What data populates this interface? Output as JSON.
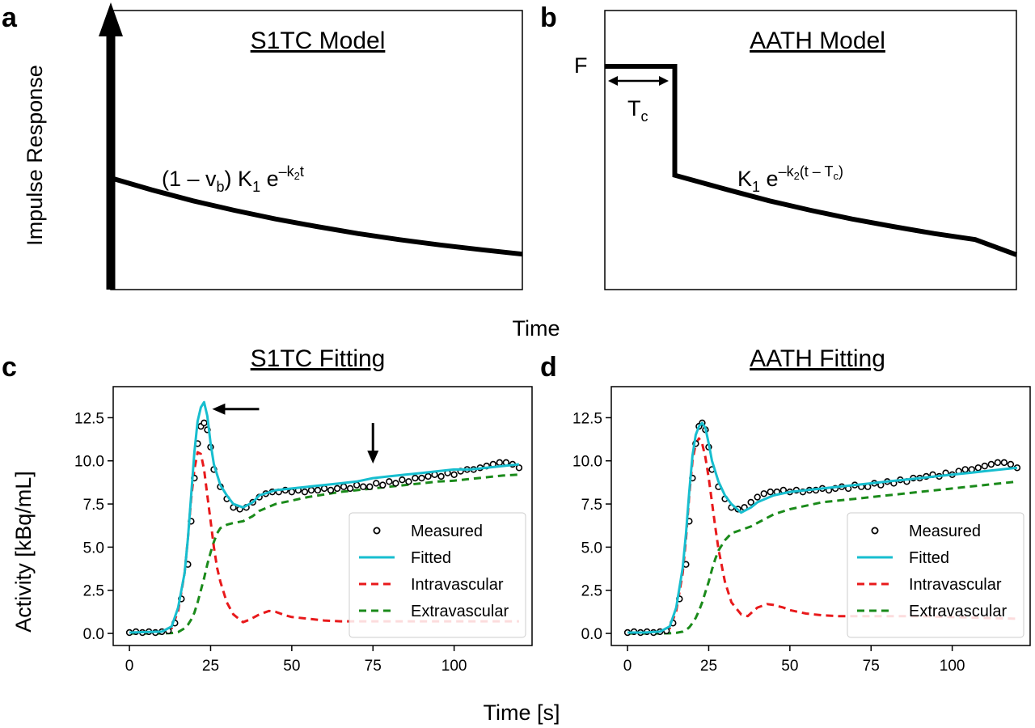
{
  "panels": {
    "a": {
      "letter": "a",
      "title": "S1TC Model",
      "equation": {
        "p1": "(1 – v",
        "p1_sub": "b",
        "p2": ") K",
        "p2_sub": "1",
        "p3": " e",
        "p3_sup": "–k",
        "p3_sup_sub": "2",
        "p3_sup_tail": "t"
      }
    },
    "b": {
      "letter": "b",
      "title": "AATH Model",
      "flow_label": "F",
      "tc_label": "T",
      "tc_sub": "c",
      "equation": {
        "p1": "K",
        "p1_sub": "1",
        "p2": " e",
        "p2_sup": "–k",
        "p2_sup_sub": "2",
        "p2_sup_tail": "(t – T",
        "p2_sup_sub2": "c",
        "p2_sup_end": ")"
      }
    },
    "c": {
      "letter": "c",
      "title": "S1TC Fitting"
    },
    "d": {
      "letter": "d",
      "title": "AATH Fitting"
    }
  },
  "shared_labels": {
    "top_ylabel": "Impulse Response",
    "top_xlabel": "Time",
    "bottom_ylabel": "Activity [kBq/mL]",
    "bottom_xlabel": "Time [s]"
  },
  "legend": [
    {
      "key": "measured",
      "label": "Measured"
    },
    {
      "key": "fitted",
      "label": "Fitted"
    },
    {
      "key": "intravascular",
      "label": "Intravascular"
    },
    {
      "key": "extravascular",
      "label": "Extravascular"
    }
  ],
  "colors": {
    "fitted": "#17becf",
    "intravascular": "#e8191b",
    "extravascular": "#1a8a1a",
    "measured": "#000000",
    "curve": "#000000"
  },
  "chart_data": [
    {
      "type": "line",
      "panel": "a",
      "title": "S1TC Model",
      "xlabel": "Time",
      "ylabel": "Impulse Response",
      "impulse_at_x": 0,
      "series": [
        {
          "name": "",
          "x": [
            0,
            10,
            20,
            30,
            40,
            50,
            60,
            70,
            80,
            90,
            100
          ],
          "y": [
            0.4,
            0.357,
            0.318,
            0.284,
            0.253,
            0.226,
            0.201,
            0.179,
            0.16,
            0.143,
            0.127
          ]
        }
      ]
    },
    {
      "type": "line",
      "panel": "b",
      "title": "AATH Model",
      "xlabel": "Time",
      "ylabel": "Impulse Response",
      "series": [
        {
          "name": "",
          "x": [
            0,
            17,
            17,
            30,
            40,
            50,
            60,
            70,
            80,
            90,
            100
          ],
          "y": [
            0.8,
            0.8,
            0.41,
            0.357,
            0.318,
            0.284,
            0.253,
            0.226,
            0.201,
            0.179,
            0.125
          ]
        }
      ]
    },
    {
      "type": "line",
      "panel": "c",
      "title": "S1TC Fitting",
      "xlabel": "Time [s]",
      "ylabel": "Activity [kBq/mL]",
      "xlim": [
        -5,
        124
      ],
      "ylim": [
        -0.7,
        14.3
      ],
      "xticks": [
        0,
        25,
        50,
        75,
        100
      ],
      "yticks": [
        0.0,
        2.5,
        5.0,
        7.5,
        10.0,
        12.5
      ],
      "legend_position": "lower-right",
      "annotations": [
        {
          "type": "arrow-left",
          "x": 23,
          "y": 13.0
        },
        {
          "type": "arrow-down",
          "x": 75,
          "y": 10.5
        }
      ],
      "series": [
        {
          "name": "Measured",
          "style": "markers",
          "x": [
            0,
            2,
            4,
            6,
            8,
            10,
            12,
            14,
            16,
            18,
            19,
            20,
            21,
            22,
            23,
            24,
            25,
            26,
            28,
            30,
            32,
            34,
            36,
            38,
            40,
            42,
            44,
            46,
            48,
            50,
            52,
            54,
            56,
            58,
            60,
            62,
            64,
            66,
            68,
            70,
            72,
            74,
            76,
            78,
            80,
            82,
            84,
            86,
            88,
            90,
            92,
            94,
            96,
            98,
            100,
            102,
            104,
            106,
            108,
            110,
            112,
            114,
            116,
            118,
            120
          ],
          "y": [
            0.05,
            0.1,
            0.05,
            0.1,
            0.05,
            0.1,
            0.15,
            0.6,
            2.0,
            4.0,
            6.5,
            9.0,
            11.0,
            12.0,
            12.2,
            11.8,
            10.8,
            9.5,
            8.5,
            7.8,
            7.3,
            7.2,
            7.3,
            7.6,
            7.9,
            8.1,
            8.2,
            8.2,
            8.3,
            8.2,
            8.3,
            8.2,
            8.3,
            8.3,
            8.4,
            8.3,
            8.4,
            8.5,
            8.4,
            8.6,
            8.5,
            8.5,
            8.7,
            8.6,
            8.8,
            8.7,
            8.9,
            8.8,
            9.0,
            9.0,
            9.1,
            9.2,
            9.1,
            9.3,
            9.2,
            9.4,
            9.5,
            9.5,
            9.6,
            9.7,
            9.8,
            9.9,
            9.9,
            9.8,
            9.6
          ]
        },
        {
          "name": "Fitted",
          "style": "solid",
          "x": [
            0,
            5,
            10,
            13,
            15,
            17,
            18,
            19,
            20,
            21,
            22,
            23,
            24,
            25,
            26,
            28,
            30,
            32,
            35,
            38,
            40,
            45,
            50,
            55,
            60,
            65,
            70,
            75,
            80,
            85,
            90,
            95,
            100,
            105,
            110,
            115,
            120
          ],
          "y": [
            0.05,
            0.08,
            0.1,
            0.4,
            1.5,
            3.5,
            5.5,
            8.0,
            10.5,
            12.3,
            13.1,
            13.4,
            12.6,
            11.0,
            9.8,
            8.6,
            8.0,
            7.5,
            7.3,
            7.6,
            8.0,
            8.3,
            8.4,
            8.5,
            8.6,
            8.7,
            8.8,
            9.0,
            9.1,
            9.2,
            9.3,
            9.4,
            9.5,
            9.5,
            9.6,
            9.7,
            9.8
          ]
        },
        {
          "name": "Intravascular",
          "style": "dashed",
          "x": [
            0,
            5,
            10,
            13,
            15,
            17,
            18,
            19,
            20,
            21,
            22,
            23,
            24,
            25,
            26,
            27,
            28,
            30,
            32,
            35,
            37,
            40,
            43,
            45,
            48,
            50,
            55,
            60,
            65,
            70,
            80,
            90,
            100,
            110,
            120
          ],
          "y": [
            0.05,
            0.05,
            0.1,
            0.3,
            1.3,
            3.5,
            5.5,
            7.8,
            9.5,
            10.5,
            10.4,
            9.5,
            8.0,
            6.5,
            5.0,
            3.8,
            3.0,
            1.8,
            1.1,
            0.65,
            0.8,
            1.1,
            1.3,
            1.25,
            1.05,
            0.95,
            0.85,
            0.75,
            0.7,
            0.7,
            0.7,
            0.7,
            0.7,
            0.7,
            0.7
          ]
        },
        {
          "name": "Extravascular",
          "style": "dashed",
          "x": [
            0,
            5,
            10,
            13,
            15,
            17,
            18,
            19,
            20,
            21,
            22,
            23,
            24,
            25,
            26,
            27,
            28,
            30,
            32,
            35,
            38,
            40,
            45,
            50,
            55,
            60,
            65,
            70,
            75,
            80,
            85,
            90,
            95,
            100,
            105,
            110,
            115,
            120
          ],
          "y": [
            0.0,
            0.0,
            0.0,
            0.02,
            0.08,
            0.3,
            0.5,
            0.8,
            1.2,
            1.8,
            2.5,
            3.2,
            4.0,
            4.7,
            5.3,
            5.8,
            6.1,
            6.3,
            6.4,
            6.5,
            6.8,
            7.1,
            7.5,
            7.7,
            7.9,
            8.05,
            8.2,
            8.3,
            8.4,
            8.5,
            8.6,
            8.7,
            8.8,
            8.85,
            8.95,
            9.05,
            9.15,
            9.2
          ]
        }
      ]
    },
    {
      "type": "line",
      "panel": "d",
      "title": "AATH Fitting",
      "xlabel": "Time [s]",
      "ylabel": "Activity [kBq/mL]",
      "xlim": [
        -5,
        124
      ],
      "ylim": [
        -0.7,
        14.3
      ],
      "xticks": [
        0,
        25,
        50,
        75,
        100
      ],
      "yticks": [
        0.0,
        2.5,
        5.0,
        7.5,
        10.0,
        12.5
      ],
      "legend_position": "lower-right",
      "series": [
        {
          "name": "Measured",
          "style": "markers",
          "x": [
            0,
            2,
            4,
            6,
            8,
            10,
            12,
            14,
            16,
            18,
            19,
            20,
            21,
            22,
            23,
            24,
            25,
            26,
            28,
            30,
            32,
            34,
            36,
            38,
            40,
            42,
            44,
            46,
            48,
            50,
            52,
            54,
            56,
            58,
            60,
            62,
            64,
            66,
            68,
            70,
            72,
            74,
            76,
            78,
            80,
            82,
            84,
            86,
            88,
            90,
            92,
            94,
            96,
            98,
            100,
            102,
            104,
            106,
            108,
            110,
            112,
            114,
            116,
            118,
            120
          ],
          "y": [
            0.05,
            0.1,
            0.05,
            0.1,
            0.05,
            0.1,
            0.15,
            0.6,
            2.0,
            4.0,
            6.5,
            9.0,
            11.0,
            12.0,
            12.2,
            11.8,
            10.8,
            9.5,
            8.5,
            7.8,
            7.3,
            7.2,
            7.3,
            7.6,
            7.9,
            8.1,
            8.2,
            8.2,
            8.3,
            8.2,
            8.3,
            8.2,
            8.3,
            8.3,
            8.4,
            8.3,
            8.4,
            8.5,
            8.4,
            8.6,
            8.5,
            8.5,
            8.7,
            8.6,
            8.8,
            8.7,
            8.9,
            8.8,
            9.0,
            9.0,
            9.1,
            9.2,
            9.1,
            9.3,
            9.2,
            9.4,
            9.5,
            9.5,
            9.6,
            9.7,
            9.8,
            9.9,
            9.9,
            9.8,
            9.6
          ]
        },
        {
          "name": "Fitted",
          "style": "solid",
          "x": [
            0,
            5,
            10,
            13,
            15,
            17,
            18,
            19,
            20,
            21,
            22,
            23,
            24,
            25,
            26,
            28,
            30,
            32,
            35,
            38,
            40,
            45,
            50,
            55,
            60,
            65,
            70,
            75,
            80,
            85,
            90,
            95,
            100,
            105,
            110,
            115,
            120
          ],
          "y": [
            0.05,
            0.05,
            0.1,
            0.4,
            1.5,
            3.8,
            5.8,
            8.2,
            10.3,
            11.5,
            12.0,
            12.2,
            11.9,
            11.0,
            10.0,
            8.8,
            8.0,
            7.5,
            7.0,
            7.3,
            7.6,
            8.0,
            8.2,
            8.3,
            8.4,
            8.5,
            8.6,
            8.7,
            8.8,
            8.9,
            9.0,
            9.1,
            9.2,
            9.3,
            9.4,
            9.5,
            9.6
          ]
        },
        {
          "name": "Intravascular",
          "style": "dashed",
          "x": [
            0,
            5,
            10,
            13,
            15,
            17,
            18,
            19,
            20,
            21,
            22,
            23,
            24,
            25,
            26,
            27,
            28,
            30,
            32,
            35,
            37,
            40,
            43,
            45,
            48,
            50,
            55,
            60,
            65,
            70,
            80,
            90,
            100,
            110,
            120
          ],
          "y": [
            0.05,
            0.05,
            0.1,
            0.3,
            1.3,
            3.5,
            5.5,
            8.0,
            10.0,
            11.0,
            11.3,
            11.0,
            10.2,
            9.0,
            7.6,
            6.2,
            4.9,
            3.0,
            1.8,
            1.1,
            1.0,
            1.5,
            1.7,
            1.65,
            1.5,
            1.35,
            1.15,
            1.05,
            1.0,
            1.0,
            1.0,
            1.0,
            0.95,
            0.9,
            0.85
          ]
        },
        {
          "name": "Extravascular",
          "style": "dashed",
          "x": [
            0,
            5,
            10,
            13,
            15,
            17,
            18,
            19,
            20,
            21,
            22,
            23,
            24,
            25,
            26,
            27,
            28,
            30,
            32,
            35,
            38,
            40,
            45,
            50,
            55,
            60,
            65,
            70,
            75,
            80,
            85,
            90,
            95,
            100,
            105,
            110,
            115,
            120
          ],
          "y": [
            0.0,
            0.0,
            0.0,
            0.01,
            0.03,
            0.1,
            0.2,
            0.35,
            0.6,
            0.9,
            1.3,
            1.8,
            2.4,
            3.0,
            3.7,
            4.3,
            4.8,
            5.4,
            5.8,
            6.0,
            6.2,
            6.4,
            6.9,
            7.2,
            7.4,
            7.6,
            7.7,
            7.8,
            7.9,
            8.0,
            8.1,
            8.2,
            8.3,
            8.4,
            8.5,
            8.6,
            8.7,
            8.8
          ]
        }
      ]
    }
  ]
}
